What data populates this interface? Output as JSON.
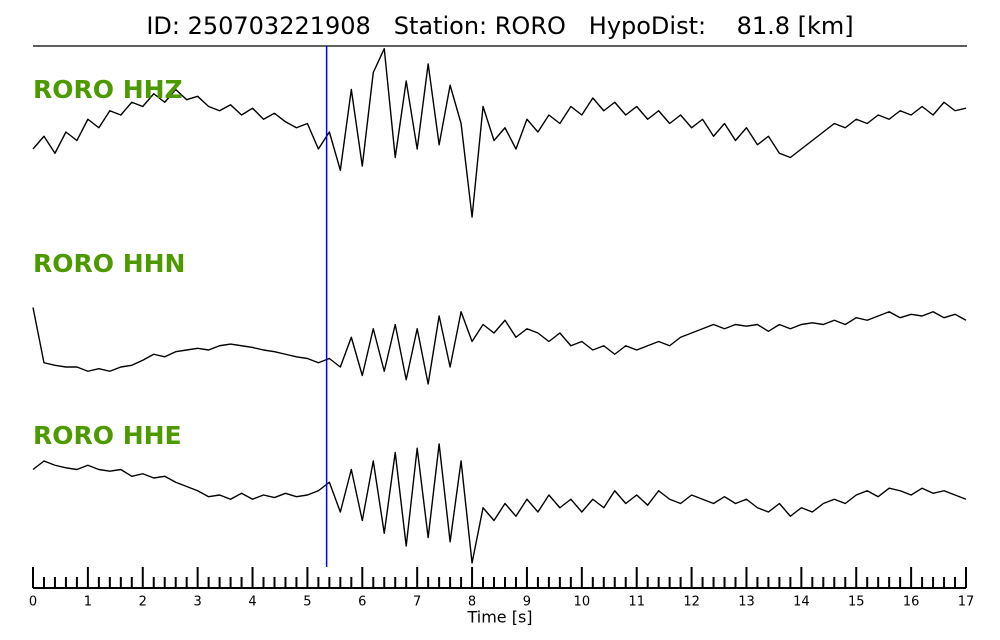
{
  "chart_data": {
    "type": "line",
    "title": "ID: 250703221908   Station: RORO   HypoDist:    81.8 [km]",
    "xlabel": "Time [s]",
    "xlim": [
      0,
      17
    ],
    "xticks": [
      0,
      1,
      2,
      3,
      4,
      5,
      6,
      7,
      8,
      9,
      10,
      11,
      12,
      13,
      14,
      15,
      16,
      17
    ],
    "ylim": [
      -1,
      1
    ],
    "vlines": [
      5.35
    ],
    "vline_color": "#0000ff",
    "label_color": "#4c9a00",
    "x": [
      0,
      0.2,
      0.4,
      0.6,
      0.8,
      1,
      1.2,
      1.4,
      1.6,
      1.8,
      2,
      2.2,
      2.4,
      2.6,
      2.8,
      3,
      3.2,
      3.4,
      3.6,
      3.8,
      4,
      4.2,
      4.4,
      4.6,
      4.8,
      5,
      5.2,
      5.4,
      5.6,
      5.8,
      6,
      6.2,
      6.4,
      6.6,
      6.8,
      7,
      7.2,
      7.4,
      7.6,
      7.8,
      8,
      8.2,
      8.4,
      8.6,
      8.8,
      9,
      9.2,
      9.4,
      9.6,
      9.8,
      10,
      10.2,
      10.4,
      10.6,
      10.8,
      11,
      11.2,
      11.4,
      11.6,
      11.8,
      12,
      12.2,
      12.4,
      12.6,
      12.8,
      13,
      13.2,
      13.4,
      13.6,
      13.8,
      14,
      14.2,
      14.4,
      14.6,
      14.8,
      15,
      15.2,
      15.4,
      15.6,
      15.8,
      16,
      16.2,
      16.4,
      16.6,
      16.8,
      17
    ],
    "series": [
      {
        "name": "RORO HHZ",
        "color": "#000000",
        "values": [
          -0.2,
          -0.05,
          -0.25,
          0.0,
          -0.1,
          0.15,
          0.05,
          0.25,
          0.2,
          0.35,
          0.3,
          0.45,
          0.35,
          0.5,
          0.38,
          0.42,
          0.3,
          0.25,
          0.32,
          0.2,
          0.28,
          0.15,
          0.22,
          0.12,
          0.05,
          0.1,
          -0.2,
          0.0,
          -0.45,
          0.5,
          -0.4,
          0.7,
          0.98,
          -0.3,
          0.6,
          -0.2,
          0.8,
          -0.15,
          0.55,
          0.1,
          -1.0,
          0.3,
          -0.1,
          0.05,
          -0.2,
          0.15,
          0.0,
          0.2,
          0.1,
          0.3,
          0.2,
          0.4,
          0.25,
          0.35,
          0.2,
          0.3,
          0.15,
          0.25,
          0.1,
          0.2,
          0.05,
          0.15,
          -0.05,
          0.1,
          -0.1,
          0.05,
          -0.15,
          -0.05,
          -0.25,
          -0.3,
          -0.2,
          -0.1,
          0.0,
          0.1,
          0.05,
          0.15,
          0.1,
          0.2,
          0.15,
          0.25,
          0.2,
          0.3,
          0.2,
          0.35,
          0.25,
          0.28
        ]
      },
      {
        "name": "RORO HHN",
        "color": "#000000",
        "values": [
          0.5,
          -0.15,
          -0.18,
          -0.2,
          -0.2,
          -0.25,
          -0.22,
          -0.25,
          -0.2,
          -0.18,
          -0.12,
          -0.05,
          -0.08,
          -0.02,
          0.0,
          0.02,
          0.0,
          0.05,
          0.07,
          0.05,
          0.03,
          0.0,
          -0.02,
          -0.05,
          -0.08,
          -0.1,
          -0.15,
          -0.1,
          -0.2,
          0.15,
          -0.3,
          0.25,
          -0.25,
          0.3,
          -0.35,
          0.25,
          -0.4,
          0.4,
          -0.2,
          0.45,
          0.1,
          0.3,
          0.2,
          0.35,
          0.15,
          0.25,
          0.2,
          0.1,
          0.2,
          0.05,
          0.1,
          0.0,
          0.05,
          -0.05,
          0.05,
          0.0,
          0.05,
          0.1,
          0.05,
          0.15,
          0.2,
          0.25,
          0.3,
          0.25,
          0.3,
          0.28,
          0.3,
          0.22,
          0.3,
          0.25,
          0.3,
          0.32,
          0.3,
          0.35,
          0.3,
          0.38,
          0.35,
          0.4,
          0.45,
          0.38,
          0.42,
          0.4,
          0.45,
          0.38,
          0.42,
          0.35
        ]
      },
      {
        "name": "RORO HHE",
        "color": "#000000",
        "values": [
          0.3,
          0.4,
          0.35,
          0.32,
          0.3,
          0.35,
          0.3,
          0.28,
          0.3,
          0.22,
          0.25,
          0.2,
          0.22,
          0.15,
          0.1,
          0.05,
          -0.02,
          0.0,
          -0.05,
          0.02,
          -0.05,
          0.0,
          -0.03,
          0.02,
          -0.02,
          0.0,
          0.05,
          0.15,
          -0.2,
          0.3,
          -0.3,
          0.4,
          -0.45,
          0.5,
          -0.6,
          0.55,
          -0.5,
          0.6,
          -0.55,
          0.4,
          -0.8,
          -0.15,
          -0.3,
          -0.1,
          -0.25,
          -0.05,
          -0.2,
          0.0,
          -0.15,
          -0.05,
          -0.2,
          -0.05,
          -0.15,
          0.05,
          -0.1,
          0.0,
          -0.12,
          0.05,
          -0.05,
          -0.1,
          0.0,
          -0.05,
          -0.1,
          -0.02,
          -0.1,
          -0.05,
          -0.15,
          -0.2,
          -0.1,
          -0.25,
          -0.15,
          -0.2,
          -0.1,
          -0.05,
          -0.1,
          0.0,
          0.05,
          -0.02,
          0.08,
          0.05,
          0.0,
          0.08,
          0.02,
          0.05,
          0.0,
          -0.05
        ]
      }
    ]
  }
}
